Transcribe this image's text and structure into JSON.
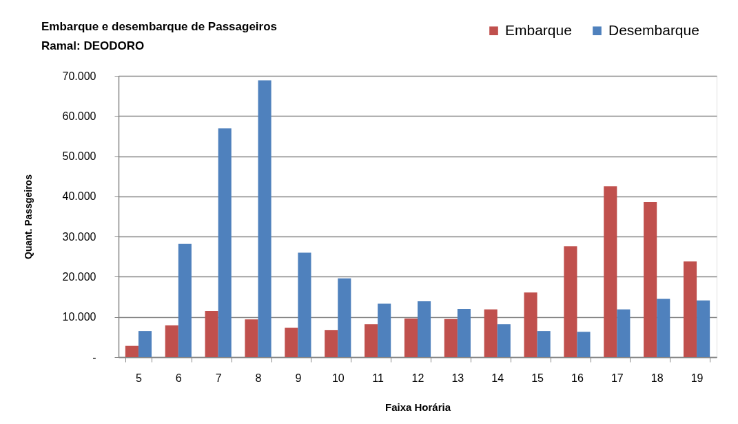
{
  "chart_data": {
    "type": "bar",
    "title": "Embarque e desembarque de Passageiros",
    "subtitle": "Ramal: DEODORO",
    "xlabel": "Faixa Horária",
    "ylabel": "Quant. Passgeiros",
    "categories": [
      "5",
      "6",
      "7",
      "8",
      "9",
      "10",
      "11",
      "12",
      "13",
      "14",
      "15",
      "16",
      "17",
      "18",
      "19"
    ],
    "series": [
      {
        "name": "Embarque",
        "color": "#c0504d",
        "values": [
          2800,
          7900,
          11500,
          9400,
          7300,
          6700,
          8200,
          9600,
          9500,
          11900,
          16100,
          27600,
          42500,
          38600,
          23800
        ]
      },
      {
        "name": "Desembarque",
        "color": "#4f81bd",
        "values": [
          6500,
          28200,
          56900,
          68900,
          26000,
          19600,
          13300,
          13900,
          12000,
          8200,
          6500,
          6300,
          11900,
          14500,
          14100
        ]
      }
    ],
    "ylim": [
      0,
      70000
    ],
    "yticks": [
      {
        "value": 0,
        "label": "-"
      },
      {
        "value": 10000,
        "label": "10.000"
      },
      {
        "value": 20000,
        "label": "20.000"
      },
      {
        "value": 30000,
        "label": "30.000"
      },
      {
        "value": 40000,
        "label": "40.000"
      },
      {
        "value": 50000,
        "label": "50.000"
      },
      {
        "value": 60000,
        "label": "60.000"
      },
      {
        "value": 70000,
        "label": "70.000"
      }
    ],
    "grid": "y",
    "legend": "top right"
  }
}
